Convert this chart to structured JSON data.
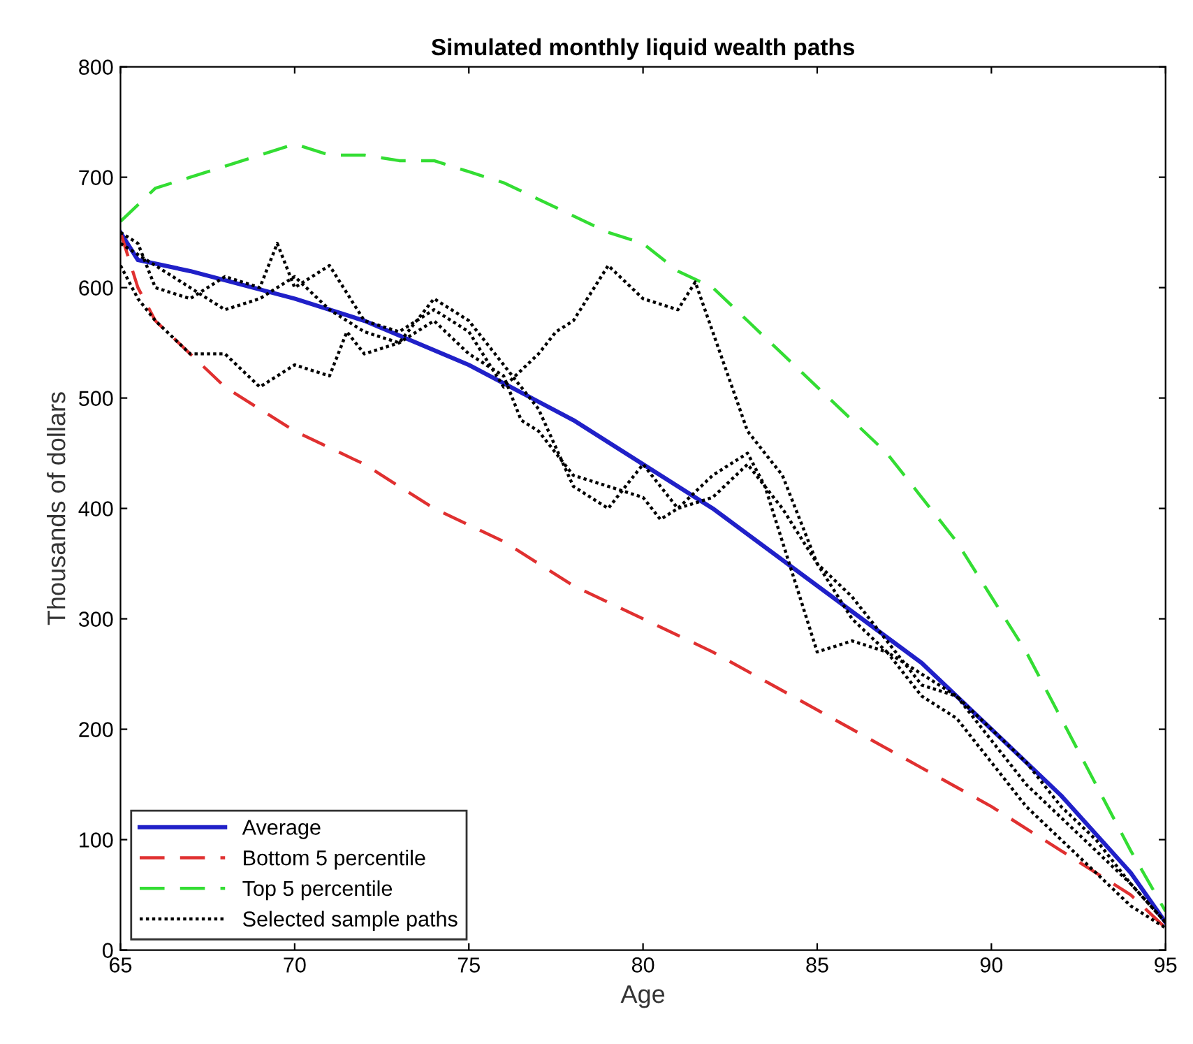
{
  "chart_data": {
    "type": "line",
    "title": "Simulated monthly liquid wealth paths",
    "xlabel": "Age",
    "ylabel": "Thousands of dollars",
    "xlim": [
      65,
      95
    ],
    "ylim": [
      0,
      800
    ],
    "xticks": [
      65,
      70,
      75,
      80,
      85,
      90,
      95
    ],
    "yticks": [
      0,
      100,
      200,
      300,
      400,
      500,
      600,
      700,
      800
    ],
    "grid": false,
    "legend": "bottom left",
    "marker": "none",
    "series": [
      {
        "name": "Average",
        "color": "#2020c8",
        "line_style": "solid",
        "x": [
          65,
          65.5,
          67,
          70,
          72,
          75,
          78,
          80,
          82,
          85,
          88,
          90,
          92,
          94,
          95
        ],
        "values": [
          650,
          625,
          615,
          590,
          570,
          530,
          480,
          440,
          400,
          330,
          260,
          200,
          140,
          70,
          25
        ]
      },
      {
        "name": "Bottom 5 percentile",
        "color": "#e03030",
        "line_style": "dashed",
        "x": [
          65,
          65.5,
          66,
          67,
          68,
          69,
          70,
          72,
          74,
          76,
          78,
          80,
          82,
          84,
          86,
          88,
          90,
          92,
          94,
          95
        ],
        "values": [
          650,
          600,
          570,
          540,
          510,
          490,
          470,
          440,
          400,
          370,
          330,
          300,
          270,
          235,
          200,
          165,
          130,
          90,
          50,
          20
        ]
      },
      {
        "name": "Top 5 percentile",
        "color": "#33dd33",
        "line_style": "dashed",
        "x": [
          65,
          66,
          67,
          68,
          69,
          70,
          71,
          72,
          73,
          74,
          75,
          76,
          77,
          78,
          79,
          80,
          81,
          82,
          83,
          84,
          85,
          86,
          87,
          88,
          89,
          90,
          91,
          92,
          93,
          94,
          95
        ],
        "values": [
          660,
          690,
          700,
          710,
          720,
          730,
          720,
          720,
          715,
          715,
          705,
          695,
          680,
          665,
          650,
          640,
          615,
          600,
          570,
          540,
          510,
          480,
          450,
          410,
          370,
          320,
          270,
          210,
          150,
          90,
          35
        ]
      },
      {
        "name": "Selected sample paths",
        "color": "#000000",
        "line_style": "dotted",
        "x": [
          65,
          65.5,
          66,
          67,
          68,
          69,
          69.5,
          70,
          71,
          72,
          73,
          74,
          75,
          76,
          77,
          77.5,
          78,
          79,
          80,
          81,
          81.5,
          82,
          83,
          84,
          85,
          86,
          87,
          88,
          89,
          90,
          91,
          92,
          93,
          94,
          95
        ],
        "values": [
          650,
          640,
          600,
          590,
          610,
          600,
          640,
          600,
          620,
          570,
          560,
          580,
          560,
          510,
          540,
          560,
          570,
          620,
          590,
          580,
          605,
          560,
          470,
          430,
          350,
          320,
          280,
          240,
          230,
          190,
          150,
          120,
          90,
          60,
          25
        ]
      },
      {
        "color": "#000000",
        "line_style": "dotted",
        "x": [
          65,
          65.5,
          66,
          67,
          68,
          69,
          70,
          71,
          71.5,
          72,
          73,
          74,
          75,
          76,
          76.5,
          77,
          78,
          79,
          80,
          80.5,
          81,
          82,
          83,
          83.5,
          84,
          85,
          86,
          87,
          88,
          89,
          90,
          91,
          92,
          93,
          94,
          95
        ],
        "values": [
          620,
          590,
          570,
          540,
          540,
          510,
          530,
          520,
          560,
          540,
          550,
          570,
          540,
          520,
          480,
          470,
          430,
          420,
          410,
          390,
          400,
          430,
          450,
          420,
          370,
          270,
          280,
          270,
          230,
          210,
          170,
          130,
          100,
          70,
          40,
          20
        ]
      },
      {
        "color": "#000000",
        "line_style": "dotted",
        "x": [
          65,
          66,
          67,
          68,
          69,
          70,
          71,
          72,
          73,
          74,
          75,
          76,
          77,
          78,
          79,
          80,
          81,
          82,
          83,
          84,
          85,
          86,
          87,
          88,
          89,
          90,
          91,
          92,
          93,
          94,
          95
        ],
        "values": [
          640,
          620,
          600,
          580,
          590,
          610,
          580,
          560,
          550,
          590,
          570,
          530,
          490,
          420,
          400,
          440,
          400,
          410,
          440,
          400,
          350,
          300,
          270,
          250,
          230,
          200,
          170,
          130,
          100,
          60,
          25
        ]
      }
    ]
  }
}
